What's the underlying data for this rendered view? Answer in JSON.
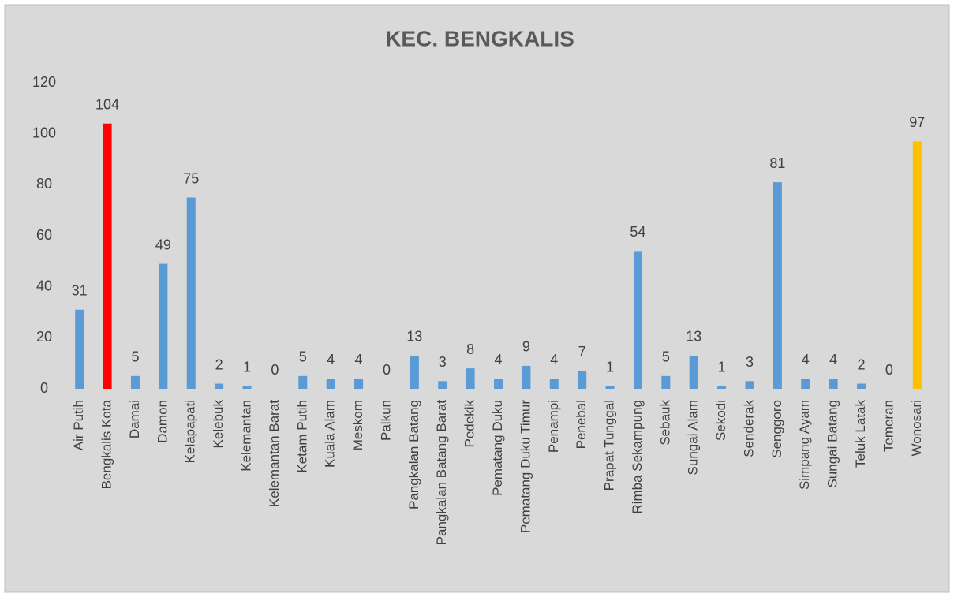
{
  "chart_data": {
    "type": "bar",
    "title": "KEC. BENGKALIS",
    "categories": [
      "Air Putih",
      "Bengkalis Kota",
      "Damai",
      "Damon",
      "Kelapapati",
      "Kelebuk",
      "Kelemantan",
      "Kelemantan Barat",
      "Ketam Putih",
      "Kuala Alam",
      "Meskom",
      "Palkun",
      "Pangkalan Batang",
      "Pangkalan Batang Barat",
      "Pedekik",
      "Pematang Duku",
      "Pematang Duku Timur",
      "Penampi",
      "Penebal",
      "Prapat Tunggal",
      "Rimba Sekampung",
      "Sebauk",
      "Sungai Alam",
      "Sekodi",
      "Senderak",
      "Senggoro",
      "Simpang Ayam",
      "Sungai Batang",
      "Teluk Latak",
      "Temeran",
      "Wonosari"
    ],
    "values": [
      31,
      104,
      5,
      49,
      75,
      2,
      1,
      0,
      5,
      4,
      4,
      0,
      13,
      3,
      8,
      4,
      9,
      4,
      7,
      1,
      54,
      5,
      13,
      1,
      3,
      81,
      4,
      4,
      2,
      0,
      97
    ],
    "colors": [
      "#5b9bd5",
      "#ff0000",
      "#5b9bd5",
      "#5b9bd5",
      "#5b9bd5",
      "#5b9bd5",
      "#5b9bd5",
      "#5b9bd5",
      "#5b9bd5",
      "#5b9bd5",
      "#5b9bd5",
      "#5b9bd5",
      "#5b9bd5",
      "#5b9bd5",
      "#5b9bd5",
      "#5b9bd5",
      "#5b9bd5",
      "#5b9bd5",
      "#5b9bd5",
      "#5b9bd5",
      "#5b9bd5",
      "#5b9bd5",
      "#5b9bd5",
      "#5b9bd5",
      "#5b9bd5",
      "#5b9bd5",
      "#5b9bd5",
      "#5b9bd5",
      "#5b9bd5",
      "#5b9bd5",
      "#ffc000"
    ],
    "ylim": [
      0,
      120
    ],
    "yticks": [
      0,
      20,
      40,
      60,
      80,
      100,
      120
    ],
    "grid": false
  }
}
